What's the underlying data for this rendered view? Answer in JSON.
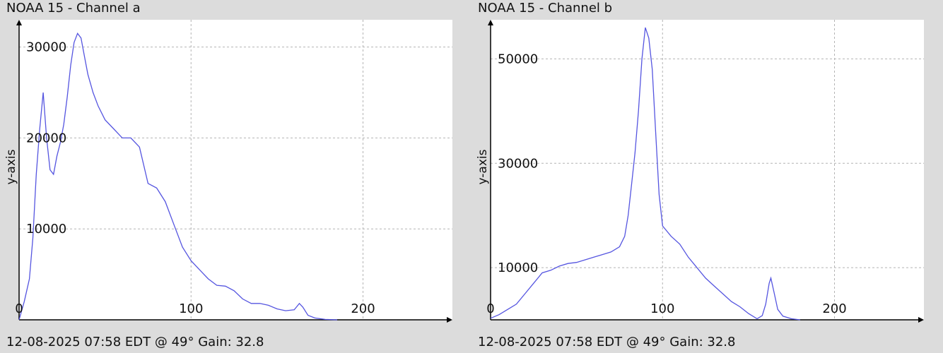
{
  "colors": {
    "background": "#dcdcdc",
    "plot_bg": "#ffffff",
    "line": "#5555e0",
    "grid": "#b4b4b4",
    "axis": "#000000"
  },
  "charts": [
    {
      "title": "NOAA 15 - Channel a",
      "footer": "12-08-2025 07:58 EDT @ 49° Gain: 32.8",
      "ylabel": "y-axis"
    },
    {
      "title": "NOAA 15 - Channel b",
      "footer": "12-08-2025 07:58 EDT @ 49° Gain: 32.8",
      "ylabel": "y-axis"
    }
  ],
  "chart_data": [
    {
      "type": "line",
      "title": "NOAA 15 - Channel a",
      "xlabel": "",
      "ylabel": "y-axis",
      "xlim": [
        0,
        252
      ],
      "ylim": [
        0,
        33000
      ],
      "x_ticks": [
        0,
        100,
        200
      ],
      "y_ticks": [
        10000,
        20000,
        30000
      ],
      "grid": true,
      "series": [
        {
          "x": [
            0,
            3,
            6,
            8,
            10,
            12,
            14,
            16,
            18,
            20,
            22,
            24,
            26,
            28,
            30,
            32,
            34,
            36,
            38,
            40,
            43,
            46,
            50,
            55,
            60,
            65,
            70,
            75,
            80,
            85,
            90,
            95,
            100,
            105,
            110,
            115,
            120,
            125,
            130,
            135,
            140,
            145,
            150,
            155,
            160,
            163,
            165,
            168,
            172,
            178,
            185
          ],
          "y": [
            0,
            2000,
            4500,
            9000,
            16000,
            21000,
            25000,
            20000,
            16500,
            16000,
            18000,
            19500,
            21500,
            24500,
            28000,
            30500,
            31500,
            31000,
            29000,
            27000,
            25000,
            23500,
            22000,
            21000,
            20000,
            20000,
            19000,
            15000,
            14500,
            13000,
            10500,
            8000,
            6500,
            5500,
            4500,
            3800,
            3700,
            3200,
            2300,
            1800,
            1800,
            1600,
            1200,
            1000,
            1100,
            1800,
            1400,
            500,
            200,
            50,
            0
          ]
        }
      ]
    },
    {
      "type": "line",
      "title": "NOAA 15 - Channel b",
      "xlabel": "",
      "ylabel": "y-axis",
      "xlim": [
        0,
        252
      ],
      "ylim": [
        0,
        57500
      ],
      "x_ticks": [
        0,
        100,
        200
      ],
      "y_ticks": [
        10000,
        30000,
        50000
      ],
      "grid": true,
      "series": [
        {
          "x": [
            0,
            5,
            10,
            15,
            20,
            25,
            30,
            35,
            40,
            45,
            50,
            55,
            60,
            65,
            70,
            75,
            78,
            80,
            82,
            84,
            86,
            88,
            90,
            92,
            94,
            96,
            98,
            100,
            105,
            110,
            115,
            120,
            125,
            130,
            135,
            140,
            145,
            150,
            155,
            158,
            160,
            162,
            163,
            165,
            167,
            170,
            175,
            180
          ],
          "y": [
            300,
            1000,
            2000,
            3000,
            5000,
            7000,
            9000,
            9500,
            10300,
            10800,
            11000,
            11500,
            12000,
            12500,
            13000,
            14000,
            16000,
            20000,
            26000,
            32000,
            40000,
            50000,
            56000,
            54000,
            48000,
            36000,
            24000,
            18000,
            16000,
            14500,
            12000,
            10000,
            8000,
            6500,
            5000,
            3500,
            2500,
            1200,
            200,
            800,
            3000,
            7000,
            8000,
            5000,
            2000,
            700,
            200,
            0
          ]
        }
      ]
    }
  ]
}
